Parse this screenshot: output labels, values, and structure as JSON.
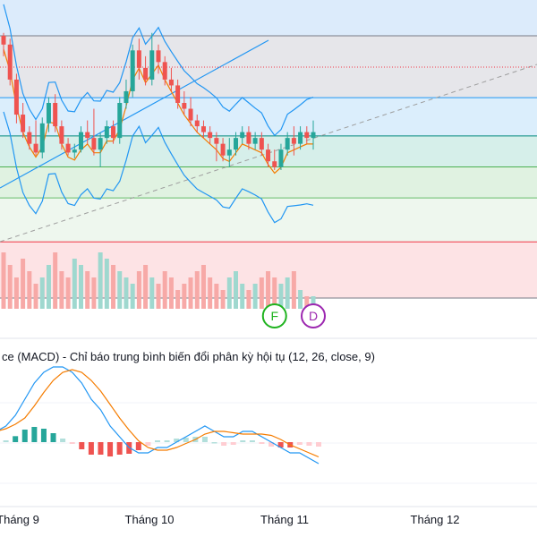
{
  "chart_data": {
    "type": "candlestick",
    "x_axis": {
      "labels": [
        "Tháng 9",
        "Tháng 10",
        "Tháng 11",
        "Tháng 12"
      ]
    },
    "price_panel": {
      "fib_levels": [
        {
          "name": "level-0",
          "price": 0.0,
          "line": "#787b86",
          "fill": "#e6e6ea"
        },
        {
          "name": "level-0.236",
          "price": 0.236,
          "line": "#2196f3",
          "fill": "#dbeefc"
        },
        {
          "name": "level-0.382",
          "price": 0.382,
          "line": "#00897b",
          "fill": "#d6efea"
        },
        {
          "name": "level-0.5",
          "price": 0.5,
          "line": "#4caf50",
          "fill": "#e0f2e1"
        },
        {
          "name": "level-0.618",
          "price": 0.618,
          "line": "#66bb6a",
          "fill": "#eef7ee"
        },
        {
          "name": "level-0.786",
          "price": 0.786,
          "line": "#f23645",
          "fill": "#fde3e5"
        },
        {
          "name": "level-1",
          "price": 1.0,
          "line": "#787b86",
          "fill": ""
        }
      ],
      "top_band_fill": "#dcebfb",
      "current_price_line_color": "#f23645",
      "trendline_dashed_color": "#9e9e9e",
      "trendline_solid_color": "#2196f3",
      "bollinger_color": "#2196f3",
      "ma_color": "#f57c00",
      "up_color": "#26a69a",
      "down_color": "#ef5350",
      "markers": [
        {
          "label": "F",
          "color": "#1fb31f",
          "index": 42
        },
        {
          "label": "D",
          "color": "#9c27b0",
          "index": 48
        }
      ]
    },
    "macd_panel": {
      "title": "ce (MACD) - Chỉ báo trung bình biến đổi phân kỳ hội tụ (12, 26, close, 9)",
      "macd_color": "#2196f3",
      "signal_color": "#f57c00",
      "hist_colors": {
        "pos_strong": "#26a69a",
        "pos_weak": "#b2dfdb",
        "neg_strong": "#ef5350",
        "neg_weak": "#ffcdd2"
      }
    },
    "candles": [
      [
        0.45,
        0.42,
        0.38,
        0.46
      ],
      [
        0.42,
        0.3,
        0.28,
        0.44
      ],
      [
        0.3,
        0.18,
        0.15,
        0.32
      ],
      [
        0.18,
        0.12,
        0.1,
        0.22
      ],
      [
        0.12,
        0.08,
        0.06,
        0.14
      ],
      [
        0.08,
        0.05,
        0.04,
        0.16
      ],
      [
        0.05,
        0.15,
        0.03,
        0.17
      ],
      [
        0.15,
        0.22,
        0.12,
        0.24
      ],
      [
        0.22,
        0.14,
        0.12,
        0.25
      ],
      [
        0.14,
        0.08,
        0.06,
        0.16
      ],
      [
        0.08,
        0.05,
        0.04,
        0.1
      ],
      [
        0.05,
        0.06,
        0.03,
        0.08
      ],
      [
        0.06,
        0.12,
        0.05,
        0.14
      ],
      [
        0.12,
        0.1,
        0.08,
        0.16
      ],
      [
        0.1,
        0.06,
        0.04,
        0.2
      ],
      [
        0.06,
        0.1,
        0.0,
        0.12
      ],
      [
        0.1,
        0.14,
        0.08,
        0.16
      ],
      [
        0.14,
        0.1,
        0.08,
        0.16
      ],
      [
        0.1,
        0.22,
        0.08,
        0.24
      ],
      [
        0.22,
        0.26,
        0.2,
        0.3
      ],
      [
        0.26,
        0.4,
        0.24,
        0.42
      ],
      [
        0.4,
        0.34,
        0.3,
        0.44
      ],
      [
        0.34,
        0.3,
        0.28,
        0.38
      ],
      [
        0.3,
        0.4,
        0.28,
        0.46
      ],
      [
        0.4,
        0.36,
        0.32,
        0.42
      ],
      [
        0.36,
        0.3,
        0.28,
        0.38
      ],
      [
        0.3,
        0.28,
        0.26,
        0.34
      ],
      [
        0.28,
        0.22,
        0.2,
        0.3
      ],
      [
        0.22,
        0.2,
        0.18,
        0.26
      ],
      [
        0.2,
        0.16,
        0.14,
        0.24
      ],
      [
        0.16,
        0.14,
        0.12,
        0.18
      ],
      [
        0.14,
        0.12,
        0.1,
        0.16
      ],
      [
        0.12,
        0.1,
        0.08,
        0.14
      ],
      [
        0.1,
        0.08,
        0.02,
        0.12
      ],
      [
        0.08,
        0.04,
        0.02,
        0.1
      ],
      [
        0.04,
        0.06,
        0.0,
        0.1
      ],
      [
        0.06,
        0.1,
        0.04,
        0.12
      ],
      [
        0.1,
        0.12,
        0.08,
        0.14
      ],
      [
        0.12,
        0.08,
        0.06,
        0.14
      ],
      [
        0.08,
        0.1,
        0.06,
        0.12
      ],
      [
        0.1,
        0.06,
        0.04,
        0.12
      ],
      [
        0.06,
        0.02,
        0.0,
        0.08
      ],
      [
        0.02,
        0.0,
        -0.01,
        0.06
      ],
      [
        0.0,
        0.06,
        -0.01,
        0.08
      ],
      [
        0.06,
        0.1,
        0.04,
        0.12
      ],
      [
        0.1,
        0.08,
        0.04,
        0.14
      ],
      [
        0.08,
        0.12,
        0.06,
        0.14
      ],
      [
        0.12,
        0.1,
        0.08,
        0.14
      ],
      [
        0.1,
        0.12,
        0.06,
        0.16
      ]
    ],
    "volume": [
      0.9,
      0.7,
      0.5,
      0.8,
      0.6,
      0.4,
      0.5,
      0.7,
      0.9,
      0.6,
      0.5,
      0.8,
      0.7,
      0.6,
      0.5,
      0.9,
      0.8,
      0.7,
      0.6,
      0.5,
      0.4,
      0.6,
      0.7,
      0.5,
      0.4,
      0.6,
      0.5,
      0.3,
      0.4,
      0.5,
      0.6,
      0.7,
      0.5,
      0.4,
      0.3,
      0.5,
      0.6,
      0.4,
      0.3,
      0.4,
      0.5,
      0.6,
      0.5,
      0.4,
      0.5,
      0.6,
      0.3,
      0.2,
      0.2
    ],
    "macd": [
      -0.2,
      -0.1,
      0.1,
      0.4,
      0.7,
      0.9,
      1.0,
      1.0,
      0.9,
      0.7,
      0.4,
      0.2,
      -0.1,
      -0.3,
      -0.5,
      -0.6,
      -0.6,
      -0.5,
      -0.5,
      -0.4,
      -0.3,
      -0.2,
      -0.1,
      -0.2,
      -0.3,
      -0.3,
      -0.2,
      -0.2,
      -0.3,
      -0.4,
      -0.5,
      -0.6,
      -0.6,
      -0.7,
      -0.8
    ]
  }
}
